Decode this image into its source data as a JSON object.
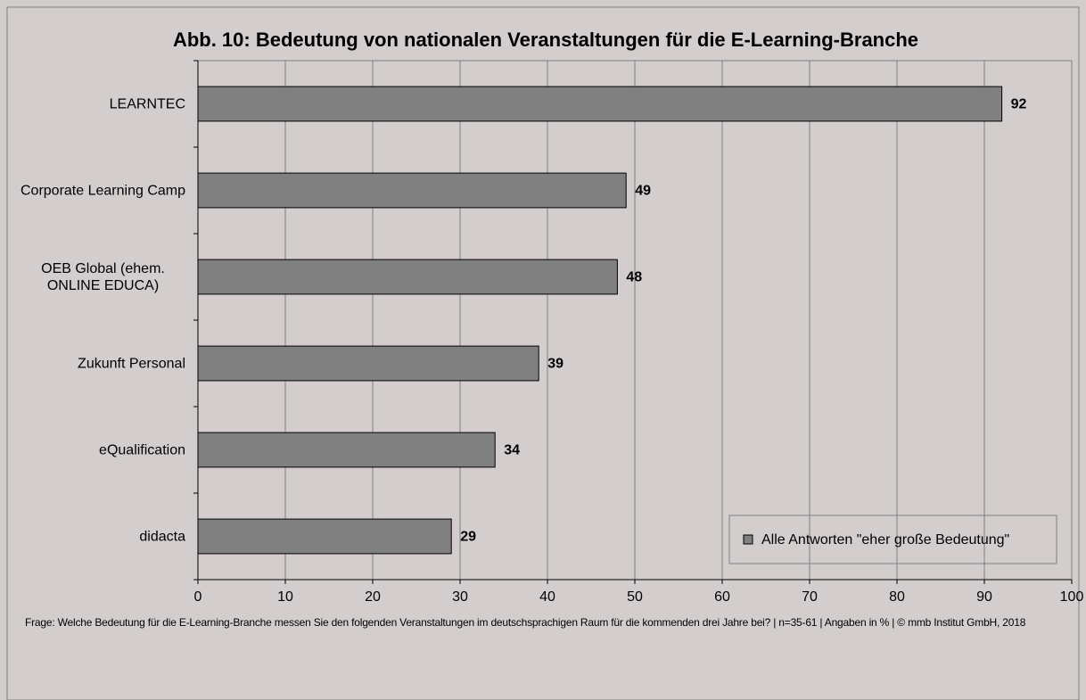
{
  "chart_data": {
    "type": "bar",
    "orientation": "horizontal",
    "title": "Abb. 10: Bedeutung von nationalen Veranstaltungen für die E-Learning-Branche",
    "categories": [
      "LEARNTEC",
      "Corporate Learning Camp",
      "OEB Global (ehem. ONLINE EDUCA)",
      "Zukunft Personal",
      "eQualification",
      "didacta"
    ],
    "series": [
      {
        "name": "Alle Antworten \"eher große Bedeutung\"",
        "color": "#808080",
        "values": [
          92,
          49,
          48,
          39,
          34,
          29
        ]
      }
    ],
    "xlim": [
      0,
      100
    ],
    "xticks": [
      0,
      10,
      20,
      30,
      40,
      50,
      60,
      70,
      80,
      90,
      100
    ],
    "grid": true,
    "legend": "lower right",
    "footnote": "Frage: Welche Bedeutung für die E-Learning-Branche messen Sie den folgenden Veranstaltungen im deutschsprachigen Raum für die kommenden drei Jahre bei? | n=35-61 | Angaben in % | © mmb Institut GmbH, 2018"
  }
}
